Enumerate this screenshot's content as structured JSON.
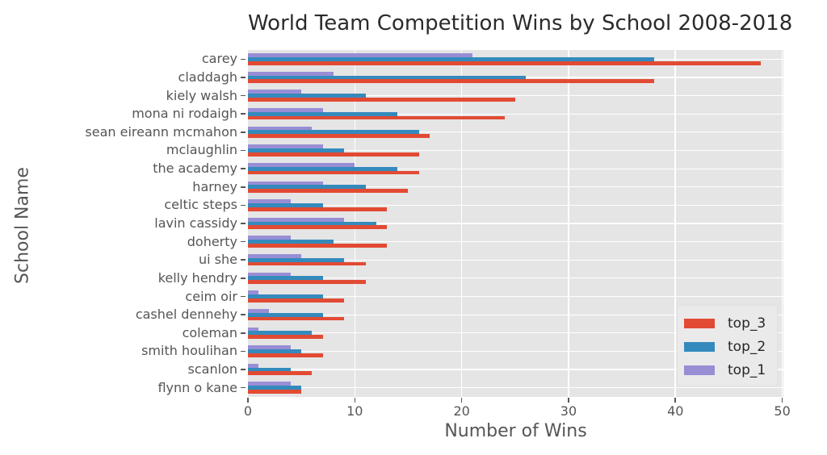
{
  "chart_data": {
    "type": "bar",
    "orientation": "horizontal",
    "title": "World Team Competition Wins by School 2008-2018",
    "xlabel": "Number of Wins",
    "ylabel": "School Name",
    "xlim": [
      0,
      50
    ],
    "xticks": [
      0,
      10,
      20,
      30,
      40,
      50
    ],
    "grid": true,
    "legend_position": "lower right",
    "plot_background": "#e5e5e5",
    "grid_color": "#ffffff",
    "tick_color": "#555555",
    "categories": [
      "carey",
      "claddagh",
      "kiely walsh",
      "mona ni rodaigh",
      "sean eireann mcmahon",
      "mclaughlin",
      "the academy",
      "harney",
      "celtic steps",
      "lavin cassidy",
      "doherty",
      "ui she",
      "kelly hendry",
      "ceim oir",
      "cashel dennehy",
      "coleman",
      "smith houlihan",
      "scanlon",
      "flynn o kane"
    ],
    "series": [
      {
        "name": "top_3",
        "color": "#e24a33",
        "values": [
          48,
          38,
          25,
          24,
          17,
          16,
          16,
          15,
          13,
          13,
          13,
          11,
          11,
          9,
          9,
          7,
          7,
          6,
          5
        ]
      },
      {
        "name": "top_2",
        "color": "#348abd",
        "values": [
          38,
          26,
          11,
          14,
          16,
          9,
          14,
          11,
          7,
          12,
          8,
          9,
          7,
          7,
          7,
          6,
          5,
          4,
          5
        ]
      },
      {
        "name": "top_1",
        "color": "#988ed5",
        "values": [
          21,
          8,
          5,
          7,
          6,
          7,
          10,
          7,
          4,
          9,
          4,
          5,
          4,
          1,
          2,
          1,
          4,
          1,
          4
        ]
      }
    ]
  }
}
